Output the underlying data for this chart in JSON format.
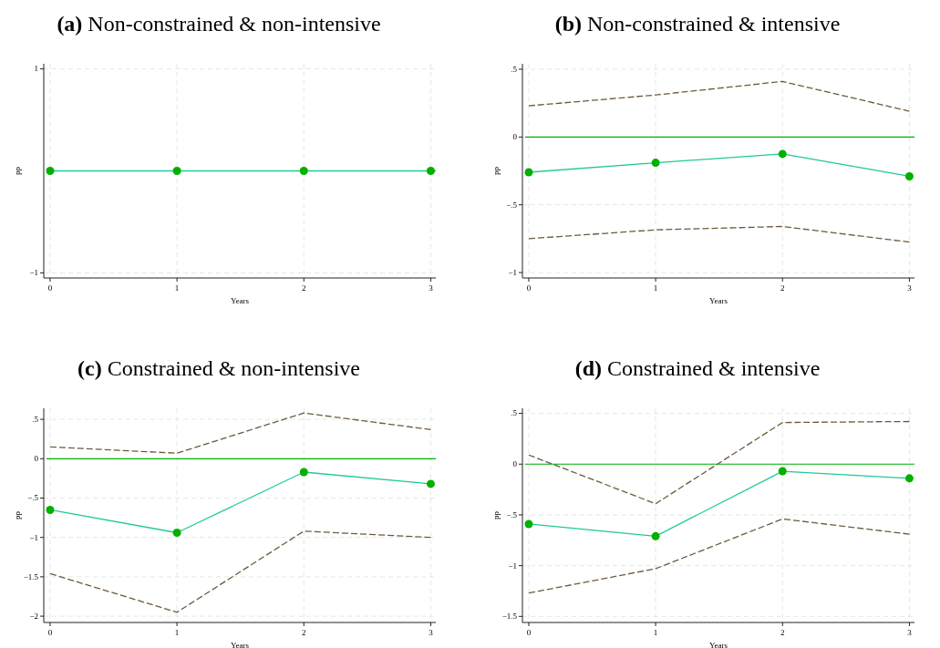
{
  "chart_data": [
    {
      "type": "line",
      "title": "(a) Non-constrained & non-intensive",
      "xlabel": "Years",
      "ylabel": "pp",
      "x": [
        0,
        1,
        2,
        3
      ],
      "xlim": [
        -0.05,
        3.04
      ],
      "xticks": [
        0,
        1,
        2,
        3
      ],
      "ylim": [
        -1.05,
        1.05
      ],
      "yticks": [
        {
          "value": 1,
          "label": "1"
        },
        {
          "value": -1,
          "label": "−1"
        }
      ],
      "grid": true,
      "ref_lines": [
        {
          "axis": "y",
          "value": 0,
          "color": "#00b000"
        }
      ],
      "series": [
        {
          "color": "#20c99a",
          "line_style": "solid",
          "marker": "circle",
          "values": [
            0,
            0,
            0,
            0
          ]
        }
      ]
    },
    {
      "type": "line",
      "title": "(b) Non-constrained & intensive",
      "xlabel": "Years",
      "ylabel": "pp",
      "x": [
        0,
        1,
        2,
        3
      ],
      "xlim": [
        -0.05,
        3.04
      ],
      "xticks": [
        0,
        1,
        2,
        3
      ],
      "ylim": [
        -1.04,
        0.54
      ],
      "yticks": [
        {
          "value": 0.5,
          "label": ".5"
        },
        {
          "value": 0,
          "label": "0"
        },
        {
          "value": -0.5,
          "label": "−.5"
        },
        {
          "value": -1,
          "label": "−1"
        }
      ],
      "grid": true,
      "ref_lines": [
        {
          "axis": "y",
          "value": 0,
          "color": "#00b000"
        }
      ],
      "series": [
        {
          "color": "#6b5a3c",
          "line_style": "dashed",
          "marker": "none",
          "values": [
            0.23,
            0.31,
            0.41,
            0.19
          ]
        },
        {
          "color": "#6b5a3c",
          "line_style": "dashed",
          "marker": "none",
          "values": [
            -0.75,
            -0.685,
            -0.66,
            -0.775
          ]
        },
        {
          "color": "#20c99a",
          "line_style": "solid",
          "marker": "circle",
          "values": [
            -0.26,
            -0.19,
            -0.125,
            -0.29
          ]
        }
      ]
    },
    {
      "type": "line",
      "title": "(c) Constrained & non-intensive",
      "xlabel": "Years",
      "ylabel": "pp",
      "x": [
        0,
        1,
        2,
        3
      ],
      "xlim": [
        -0.05,
        3.04
      ],
      "xticks": [
        0,
        1,
        2,
        3
      ],
      "ylim": [
        -2.08,
        0.64
      ],
      "yticks": [
        {
          "value": 0.5,
          "label": ".5"
        },
        0,
        {
          "value": -0.5,
          "label": "−.5"
        },
        {
          "value": -1,
          "label": "−1"
        },
        {
          "value": -1.5,
          "label": "−1.5"
        },
        {
          "value": -2,
          "label": "−2"
        }
      ],
      "grid": true,
      "ref_lines": [
        {
          "axis": "y",
          "value": 0,
          "color": "#00b000"
        }
      ],
      "series": [
        {
          "color": "#6b5a3c",
          "line_style": "dashed",
          "marker": "none",
          "values": [
            0.15,
            0.07,
            0.58,
            0.37
          ]
        },
        {
          "color": "#6b5a3c",
          "line_style": "dashed",
          "marker": "none",
          "values": [
            -1.46,
            -1.95,
            -0.92,
            -1.0
          ]
        },
        {
          "color": "#20c99a",
          "line_style": "solid",
          "marker": "circle",
          "values": [
            -0.65,
            -0.94,
            -0.17,
            -0.32
          ]
        }
      ]
    },
    {
      "type": "line",
      "title": "(d) Constrained & intensive",
      "xlabel": "Years",
      "ylabel": "pp",
      "x": [
        0,
        1,
        2,
        3
      ],
      "xlim": [
        -0.05,
        3.04
      ],
      "xticks": [
        0,
        1,
        2,
        3
      ],
      "ylim": [
        -1.56,
        0.55
      ],
      "yticks": [
        {
          "value": 0.5,
          "label": ".5"
        },
        0,
        {
          "value": -0.5,
          "label": "−.5"
        },
        {
          "value": -1,
          "label": "−1"
        },
        {
          "value": -1.5,
          "label": "−1.5"
        }
      ],
      "grid": true,
      "ref_lines": [
        {
          "axis": "y",
          "value": 0,
          "color": "#00b000"
        }
      ],
      "series": [
        {
          "color": "#6b5a3c",
          "line_style": "dashed",
          "marker": "none",
          "values": [
            0.09,
            -0.39,
            0.41,
            0.42
          ]
        },
        {
          "color": "#6b5a3c",
          "line_style": "dashed",
          "marker": "none",
          "values": [
            -1.27,
            -1.03,
            -0.54,
            -0.69
          ]
        },
        {
          "color": "#20c99a",
          "line_style": "solid",
          "marker": "circle",
          "values": [
            -0.59,
            -0.71,
            -0.07,
            -0.14
          ]
        }
      ]
    }
  ]
}
